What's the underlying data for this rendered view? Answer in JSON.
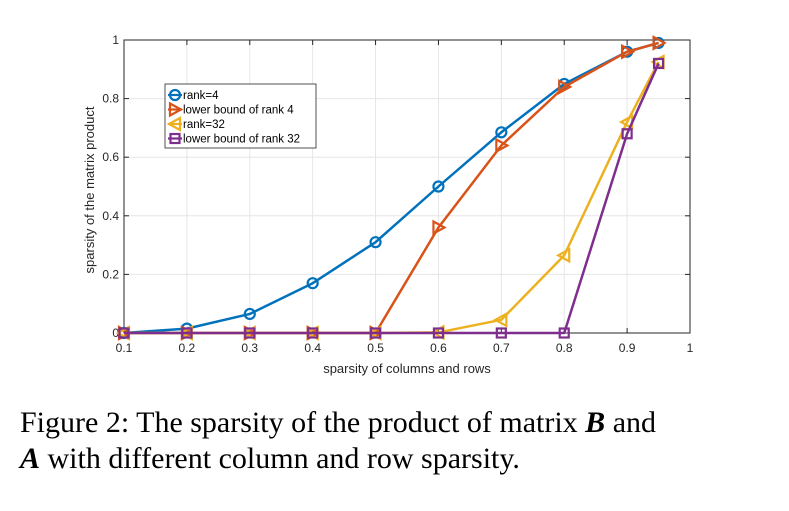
{
  "chart_data": {
    "type": "line",
    "title": "",
    "xlabel": "sparsity of columns and rows",
    "ylabel": "sparsity of the matrix product",
    "xlim": [
      0.1,
      1.0
    ],
    "ylim": [
      0,
      1
    ],
    "xticks": [
      "0.1",
      "0.2",
      "0.3",
      "0.4",
      "0.5",
      "0.6",
      "0.7",
      "0.8",
      "0.9",
      "1"
    ],
    "yticks": [
      "0",
      "0.2",
      "0.4",
      "0.6",
      "0.8",
      "1"
    ],
    "grid": true,
    "legend_position": "upper-left",
    "series": [
      {
        "name": "rank=4",
        "color": "#0072BD",
        "marker": "circle",
        "x": [
          0.1,
          0.2,
          0.3,
          0.4,
          0.5,
          0.6,
          0.7,
          0.8,
          0.9,
          0.95
        ],
        "y": [
          0.0,
          0.015,
          0.065,
          0.17,
          0.31,
          0.5,
          0.685,
          0.85,
          0.96,
          0.99
        ]
      },
      {
        "name": "lower bound of rank 4",
        "color": "#D95319",
        "marker": "triangle-right",
        "x": [
          0.1,
          0.2,
          0.3,
          0.4,
          0.5,
          0.6,
          0.7,
          0.8,
          0.9,
          0.95
        ],
        "y": [
          0.0,
          0.0,
          0.0,
          0.0,
          0.0,
          0.36,
          0.64,
          0.84,
          0.96,
          0.99
        ]
      },
      {
        "name": "rank=32",
        "color": "#EDB120",
        "marker": "triangle-left",
        "x": [
          0.1,
          0.2,
          0.3,
          0.4,
          0.5,
          0.6,
          0.7,
          0.8,
          0.9,
          0.95
        ],
        "y": [
          0.0,
          0.0,
          0.0,
          0.0,
          0.0,
          0.002,
          0.045,
          0.265,
          0.72,
          0.925
        ]
      },
      {
        "name": "lower bound of rank 32",
        "color": "#7E2F8E",
        "marker": "square",
        "x": [
          0.1,
          0.2,
          0.3,
          0.4,
          0.5,
          0.6,
          0.7,
          0.8,
          0.9,
          0.95
        ],
        "y": [
          0.0,
          0.0,
          0.0,
          0.0,
          0.0,
          0.0,
          0.0,
          0.0,
          0.68,
          0.92
        ]
      }
    ]
  },
  "caption": {
    "prefix": "Figure 2: The sparsity of the product of matrix ",
    "sym1": "B",
    "middle1": " and",
    "sym2": "A",
    "middle2": " with different column and row sparsity."
  }
}
